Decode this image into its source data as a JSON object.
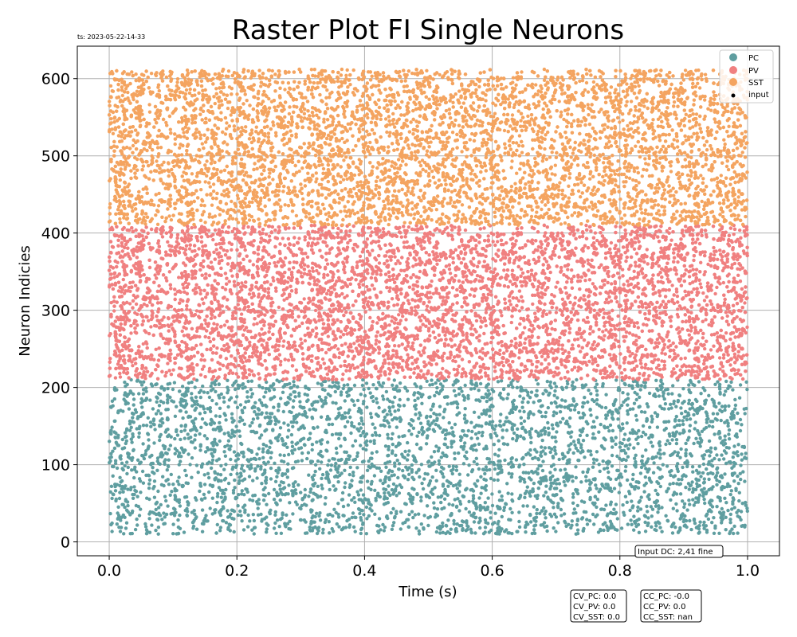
{
  "timestamp": "ts: 2023-05-22-14-33",
  "colors": {
    "PC": "#5f9ea0",
    "PV": "#f08080",
    "SST": "#f4a460",
    "input": "#000000",
    "grid": "#b0b0b0"
  },
  "chart_data": {
    "type": "scatter",
    "title": "Raster Plot FI Single Neurons",
    "xlabel": "Time (s)",
    "ylabel": "Neuron Indicies",
    "xlim": [
      -0.05,
      1.05
    ],
    "ylim": [
      -18,
      642
    ],
    "xticks": [
      0.0,
      0.2,
      0.4,
      0.6,
      0.8,
      1.0
    ],
    "xtick_labels": [
      "0.0",
      "0.2",
      "0.4",
      "0.6",
      "0.8",
      "1.0"
    ],
    "yticks": [
      0,
      100,
      200,
      300,
      400,
      500,
      600
    ],
    "ytick_labels": [
      "0",
      "100",
      "200",
      "300",
      "400",
      "500",
      "600"
    ],
    "grid": true,
    "legend_position": "top-right",
    "series": [
      {
        "name": "PC",
        "neuron_range": [
          10,
          210
        ],
        "time_range": [
          0.0,
          1.0
        ],
        "approx_spike_count": 3800
      },
      {
        "name": "PV",
        "neuron_range": [
          210,
          410
        ],
        "time_range": [
          0.0,
          1.0
        ],
        "approx_spike_count": 9000
      },
      {
        "name": "SST",
        "neuron_range": [
          410,
          612
        ],
        "time_range": [
          0.0,
          1.0
        ],
        "approx_spike_count": 9000
      },
      {
        "name": "input",
        "neuron_range": [],
        "time_range": [],
        "approx_spike_count": 0
      }
    ],
    "annotations": {
      "input_dc": "Input DC: 2,41 fine",
      "cv": [
        "CV_PC: 0.0",
        "CV_PV: 0.0",
        "CV_SST: 0.0"
      ],
      "cc": [
        "CC_PC: -0.0",
        "CC_PV: 0.0",
        "CC_SST: nan"
      ]
    }
  }
}
